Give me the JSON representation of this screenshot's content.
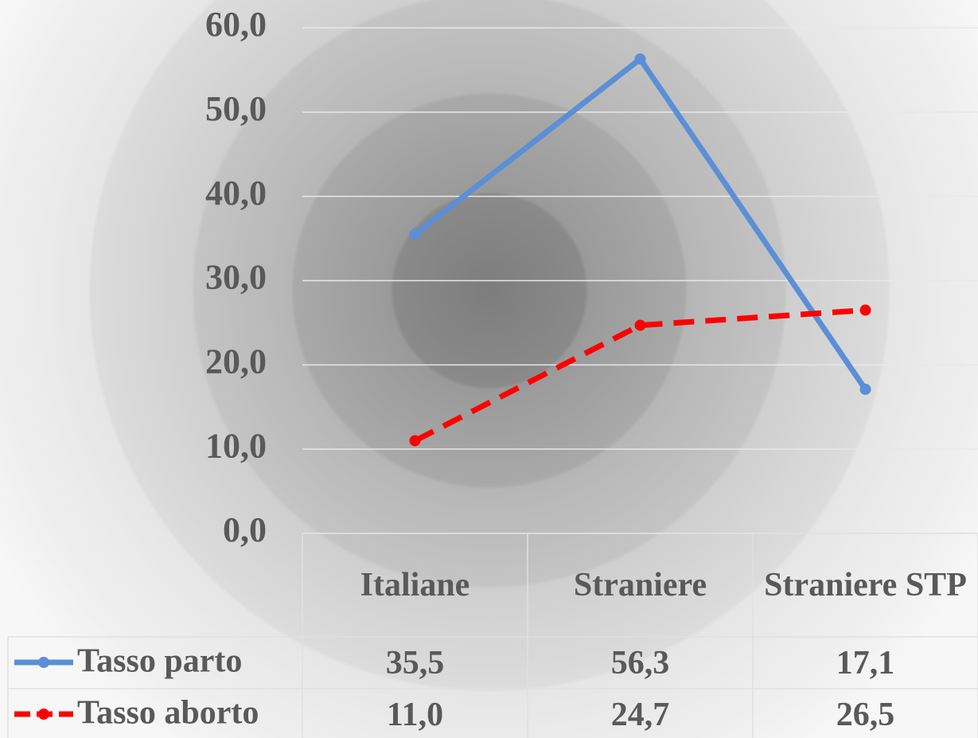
{
  "chart_data": {
    "type": "line",
    "categories": [
      "Italiane",
      "Straniere",
      "Straniere STP"
    ],
    "series": [
      {
        "name": "Tasso parto",
        "color": "#5b8fd6",
        "dashed": false,
        "values": [
          35.5,
          56.3,
          17.1
        ],
        "value_labels": [
          "35,5",
          "56,3",
          "17,1"
        ]
      },
      {
        "name": "Tasso aborto",
        "color": "#ff0000",
        "dashed": true,
        "values": [
          11.0,
          24.7,
          26.5
        ],
        "value_labels": [
          "11,0",
          "24,7",
          "26,5"
        ]
      }
    ],
    "ylim": [
      0,
      60
    ],
    "yticks": [
      {
        "value": 0,
        "label": "0,0"
      },
      {
        "value": 10,
        "label": "10,0"
      },
      {
        "value": 20,
        "label": "20,0"
      },
      {
        "value": 30,
        "label": "30,0"
      },
      {
        "value": 40,
        "label": "40,0"
      },
      {
        "value": 50,
        "label": "50,0"
      },
      {
        "value": 60,
        "label": "60,0"
      }
    ],
    "grid": true,
    "data_table": true
  }
}
